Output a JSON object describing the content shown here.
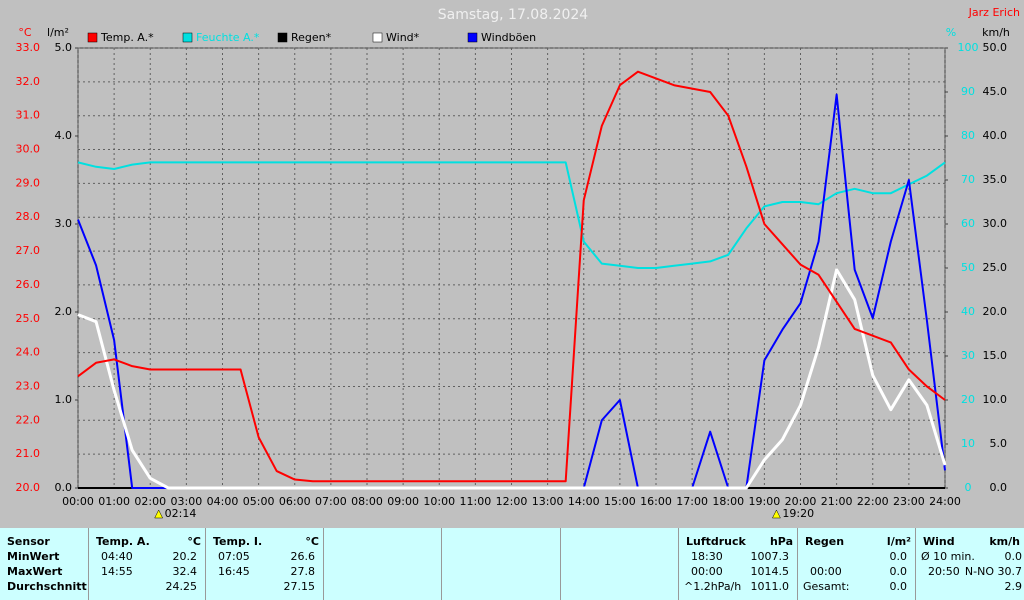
{
  "chart_data": {
    "type": "line",
    "title": "Samstag, 17.08.2024",
    "author": "Jarz Erich",
    "axes": [
      {
        "title": "°C",
        "color": "#ff0000",
        "lim": [
          20,
          33
        ],
        "ticks": [
          {
            "value": 20,
            "label": "20.0"
          },
          {
            "value": 21,
            "label": "21.0"
          },
          {
            "value": 22,
            "label": "22.0"
          },
          {
            "value": 23,
            "label": "23.0"
          },
          {
            "value": 24,
            "label": "24.0"
          },
          {
            "value": 25,
            "label": "25.0"
          },
          {
            "value": 26,
            "label": "26.0"
          },
          {
            "value": 27,
            "label": "27.0"
          },
          {
            "value": 28,
            "label": "28.0"
          },
          {
            "value": 29,
            "label": "29.0"
          },
          {
            "value": 30,
            "label": "30.0"
          },
          {
            "value": 31,
            "label": "31.0"
          },
          {
            "value": 32,
            "label": "32.0"
          },
          {
            "value": 33,
            "label": "33.0"
          }
        ]
      },
      {
        "title": "l/m²",
        "color": "#000000",
        "lim": [
          0,
          5
        ],
        "ticks": [
          {
            "value": 0,
            "label": "0.0"
          },
          {
            "value": 1,
            "label": "1.0"
          },
          {
            "value": 2,
            "label": "2.0"
          },
          {
            "value": 3,
            "label": "3.0"
          },
          {
            "value": 4,
            "label": "4.0"
          },
          {
            "value": 5,
            "label": "5.0"
          }
        ]
      },
      {
        "title": "%",
        "color": "#00e0e0",
        "lim": [
          0,
          100
        ],
        "ticks": [
          0,
          10,
          20,
          30,
          40,
          50,
          60,
          70,
          80,
          90,
          100
        ]
      },
      {
        "title": "km/h",
        "color": "#000000",
        "lim": [
          0,
          50
        ],
        "ticks": [
          {
            "value": 0,
            "label": "0.0"
          },
          {
            "value": 5,
            "label": "5.0"
          },
          {
            "value": 10,
            "label": "10.0"
          },
          {
            "value": 15,
            "label": "15.0"
          },
          {
            "value": 20,
            "label": "20.0"
          },
          {
            "value": 25,
            "label": "25.0"
          },
          {
            "value": 30,
            "label": "30.0"
          },
          {
            "value": 35,
            "label": "35.0"
          },
          {
            "value": 40,
            "label": "40.0"
          },
          {
            "value": 45,
            "label": "45.0"
          },
          {
            "value": 50,
            "label": "50.0"
          }
        ]
      }
    ],
    "xlim": [
      0,
      24
    ],
    "xticks": [
      {
        "value": 0,
        "label": "00:00"
      },
      {
        "value": 1,
        "label": "01:00"
      },
      {
        "value": 2,
        "label": "02:00"
      },
      {
        "value": 3,
        "label": "03:00"
      },
      {
        "value": 4,
        "label": "04:00"
      },
      {
        "value": 5,
        "label": "05:00"
      },
      {
        "value": 6,
        "label": "06:00"
      },
      {
        "value": 7,
        "label": "07:00"
      },
      {
        "value": 8,
        "label": "08:00"
      },
      {
        "value": 9,
        "label": "09:00"
      },
      {
        "value": 10,
        "label": "10:00"
      },
      {
        "value": 11,
        "label": "11:00"
      },
      {
        "value": 12,
        "label": "12:00"
      },
      {
        "value": 13,
        "label": "13:00"
      },
      {
        "value": 14,
        "label": "14:00"
      },
      {
        "value": 15,
        "label": "15:00"
      },
      {
        "value": 16,
        "label": "16:00"
      },
      {
        "value": 17,
        "label": "17:00"
      },
      {
        "value": 18,
        "label": "18:00"
      },
      {
        "value": 19,
        "label": "19:00"
      },
      {
        "value": 20,
        "label": "20:00"
      },
      {
        "value": 21,
        "label": "21:00"
      },
      {
        "value": 22,
        "label": "22:00"
      },
      {
        "value": 23,
        "label": "23:00"
      },
      {
        "value": 24,
        "label": "24:00"
      }
    ],
    "grid": true,
    "x": [
      0,
      0.5,
      1,
      1.5,
      2,
      2.5,
      3,
      3.5,
      4,
      4.5,
      5,
      5.5,
      6,
      6.5,
      7,
      7.5,
      8,
      8.5,
      9,
      9.5,
      10,
      10.5,
      11,
      11.5,
      12,
      12.5,
      13,
      13.5,
      14,
      14.5,
      15,
      15.5,
      16,
      16.5,
      17,
      17.5,
      18,
      18.5,
      19,
      19.5,
      20,
      20.5,
      21,
      21.5,
      22,
      22.5,
      23,
      23.5,
      24
    ],
    "series": [
      {
        "name": "Temp. A.*",
        "color": "#ff0000",
        "axis": 0,
        "values": [
          23.3,
          23.7,
          23.8,
          23.6,
          23.5,
          23.5,
          23.5,
          23.5,
          23.5,
          23.5,
          21.5,
          20.5,
          20.25,
          20.2,
          20.2,
          20.2,
          20.2,
          20.2,
          20.2,
          20.2,
          20.2,
          20.2,
          20.2,
          20.2,
          20.2,
          20.2,
          20.2,
          20.2,
          28.5,
          30.7,
          31.9,
          32.3,
          32.1,
          31.9,
          31.8,
          31.7,
          31.0,
          29.5,
          27.8,
          27.2,
          26.6,
          26.3,
          25.5,
          24.7,
          24.5,
          24.3,
          23.5,
          23.0,
          22.6
        ]
      },
      {
        "name": "Feuchte A.*",
        "color": "#00e0e0",
        "axis": 2,
        "values": [
          74,
          73,
          72.5,
          73.5,
          74,
          74,
          74,
          74,
          74,
          74,
          74,
          74,
          74,
          74,
          74,
          74,
          74,
          74,
          74,
          74,
          74,
          74,
          74,
          74,
          74,
          74,
          74,
          74,
          56,
          51,
          50.5,
          50,
          50,
          50.5,
          51,
          51.5,
          53,
          59,
          64,
          65,
          65,
          64.5,
          67,
          68,
          67,
          67,
          69,
          71,
          74
        ]
      },
      {
        "name": "Regen*",
        "color": "#000000",
        "axis": 1,
        "values": [
          0,
          0,
          0,
          0,
          0,
          0,
          0,
          0,
          0,
          0,
          0,
          0,
          0,
          0,
          0,
          0,
          0,
          0,
          0,
          0,
          0,
          0,
          0,
          0,
          0,
          0,
          0,
          0,
          0,
          0,
          0,
          0,
          0,
          0,
          0,
          0,
          0,
          0,
          0,
          0,
          0,
          0,
          0,
          0,
          0,
          0,
          0,
          0,
          0
        ]
      },
      {
        "name": "Wind*",
        "color": "#ffffff",
        "axis": 3,
        "values": [
          19.7,
          18.9,
          11.1,
          4.3,
          1.1,
          0,
          0,
          0,
          0,
          0,
          0,
          0,
          0,
          0,
          0,
          0,
          0,
          0,
          0,
          0,
          0,
          0,
          0,
          0,
          0,
          0,
          0,
          0,
          0,
          0,
          0,
          0,
          0,
          0,
          0,
          0,
          0,
          0,
          3.2,
          5.5,
          9.4,
          16,
          24.8,
          21.4,
          12.8,
          8.9,
          12.3,
          9.4,
          2.6
        ]
      },
      {
        "name": "Windböen",
        "color": "#0000ff",
        "axis": 3,
        "values": [
          30.5,
          25.3,
          16.8,
          0,
          0,
          0,
          0,
          0,
          0,
          0,
          0,
          0,
          0,
          0,
          0,
          0,
          0,
          0,
          0,
          0,
          0,
          0,
          0,
          0,
          0,
          0,
          0,
          0,
          0,
          7.7,
          10,
          0,
          0,
          0,
          0,
          6.4,
          0,
          0,
          14.5,
          18,
          21,
          28,
          44.7,
          24.8,
          19.3,
          28,
          35,
          19,
          2
        ]
      }
    ],
    "annotations": [
      {
        "x": 2.2333,
        "text": "02:14"
      },
      {
        "x": 19.3333,
        "text": "19:20"
      }
    ]
  },
  "table": {
    "sensor": {
      "title": "Sensor",
      "rows": [
        "MinWert",
        "MaxWert",
        "Durchschnitt"
      ]
    },
    "panels": [
      {
        "title": "Temp. A.",
        "unit": "°C",
        "left": 88,
        "width": 117,
        "rows": [
          {
            "label": "04:40",
            "value": "20.2"
          },
          {
            "label": "14:55",
            "value": "32.4"
          },
          {
            "value": "24.25"
          }
        ]
      },
      {
        "title": "Temp. I.",
        "unit": "°C",
        "left": 205,
        "width": 118,
        "rows": [
          {
            "label": "07:05",
            "value": "26.6"
          },
          {
            "label": "16:45",
            "value": "27.8"
          },
          {
            "value": "27.15"
          }
        ]
      },
      {
        "title": "Luftdruck",
        "unit": "hPa",
        "left": 678,
        "width": 119,
        "rows": [
          {
            "label": "18:30",
            "value": "1007.3"
          },
          {
            "label": "00:00",
            "value": "1014.5"
          },
          {
            "label": "^1.2hPa/h",
            "value": "1011.0"
          }
        ]
      },
      {
        "title": "Regen",
        "unit": "l/m²",
        "left": 797,
        "width": 118,
        "rows": [
          {
            "value": "0.0"
          },
          {
            "label": "00:00",
            "value": "0.0"
          },
          {
            "label": "Gesamt:",
            "value": "0.0"
          }
        ]
      },
      {
        "title": "Wind",
        "unit": "km/h",
        "left": 915,
        "width": 109,
        "rows": [
          {
            "label": "Ø 10 min.",
            "value": "0.0"
          },
          {
            "label": "20:50",
            "value": "N-NO 30.7"
          },
          {
            "value": "2.9"
          }
        ]
      }
    ]
  }
}
